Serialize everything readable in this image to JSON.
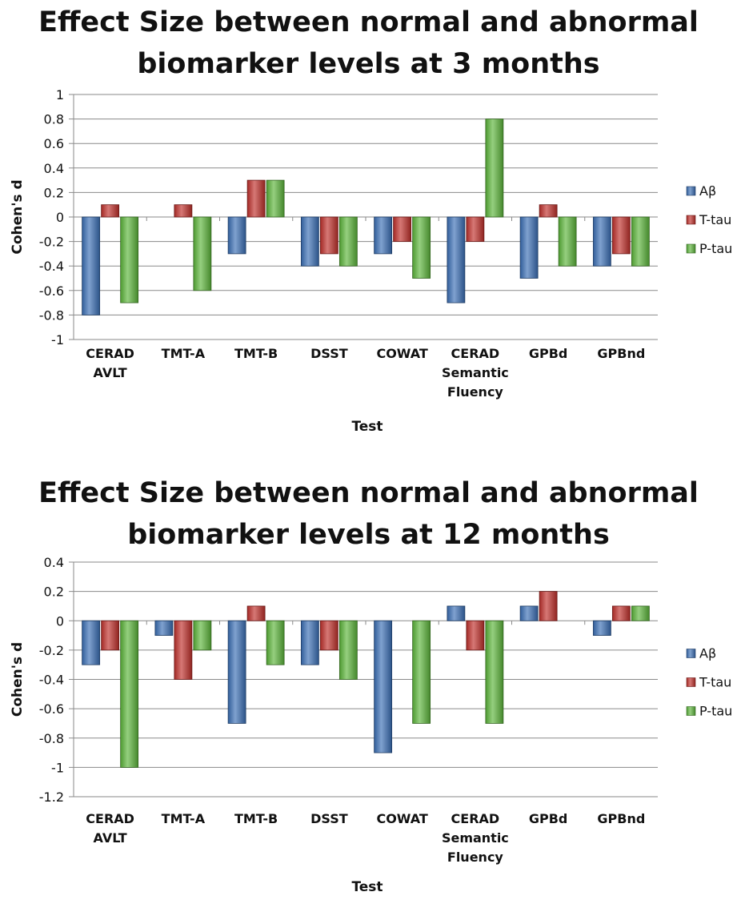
{
  "chart_data": [
    {
      "type": "bar",
      "title": [
        "Effect Size between normal and abnormal",
        "biomarker levels at 3 months"
      ],
      "xlabel": "Test",
      "ylabel": "Cohen's d",
      "ylim": [
        -1,
        1
      ],
      "yticks": [
        "1",
        "0.8",
        "0.6",
        "0.4",
        "0.2",
        "0",
        "-0.2",
        "-0.4",
        "-0.6",
        "-0.8",
        "-1"
      ],
      "categories": [
        [
          "CERAD",
          "AVLT"
        ],
        [
          "TMT-A"
        ],
        [
          "TMT-B"
        ],
        [
          "DSST"
        ],
        [
          "COWAT"
        ],
        [
          "CERAD",
          "Semantic",
          "Fluency"
        ],
        [
          "GPBd"
        ],
        [
          "GPBnd"
        ]
      ],
      "series": [
        {
          "name": "Aβ",
          "color": "#3a6fb5",
          "values": [
            -0.8,
            0,
            -0.3,
            -0.4,
            -0.3,
            -0.7,
            -0.5,
            -0.4
          ]
        },
        {
          "name": "T-tau",
          "color": "#c0302b",
          "values": [
            0.1,
            0.1,
            0.3,
            -0.3,
            -0.2,
            -0.2,
            0.1,
            -0.3
          ]
        },
        {
          "name": "P-tau",
          "color": "#5cb53a",
          "values": [
            -0.7,
            -0.6,
            0.3,
            -0.4,
            -0.5,
            0.8,
            -0.4,
            -0.4
          ]
        }
      ],
      "grid": true,
      "legend": "right"
    },
    {
      "type": "bar",
      "title": [
        "Effect Size between normal and abnormal",
        "biomarker levels at 12 months"
      ],
      "xlabel": "Test",
      "ylabel": "Cohen's d",
      "ylim": [
        -1.2,
        0.4
      ],
      "yticks": [
        "0.4",
        "0.2",
        "0",
        "-0.2",
        "-0.4",
        "-0.6",
        "-0.8",
        "-1",
        "-1.2"
      ],
      "categories": [
        [
          "CERAD",
          "AVLT"
        ],
        [
          "TMT-A"
        ],
        [
          "TMT-B"
        ],
        [
          "DSST"
        ],
        [
          "COWAT"
        ],
        [
          "CERAD",
          "Semantic",
          "Fluency"
        ],
        [
          "GPBd"
        ],
        [
          "GPBnd"
        ]
      ],
      "series": [
        {
          "name": "Aβ",
          "color": "#3a6fb5",
          "values": [
            -0.3,
            -0.1,
            -0.7,
            -0.3,
            -0.9,
            0.1,
            0.1,
            -0.1
          ]
        },
        {
          "name": "T-tau",
          "color": "#c0302b",
          "values": [
            -0.2,
            -0.4,
            0.1,
            -0.2,
            0,
            -0.2,
            0.2,
            0.1
          ]
        },
        {
          "name": "P-tau",
          "color": "#5cb53a",
          "values": [
            -1.0,
            -0.2,
            -0.3,
            -0.4,
            -0.7,
            -0.7,
            0,
            0.1
          ]
        }
      ],
      "grid": true,
      "legend": "right"
    }
  ]
}
